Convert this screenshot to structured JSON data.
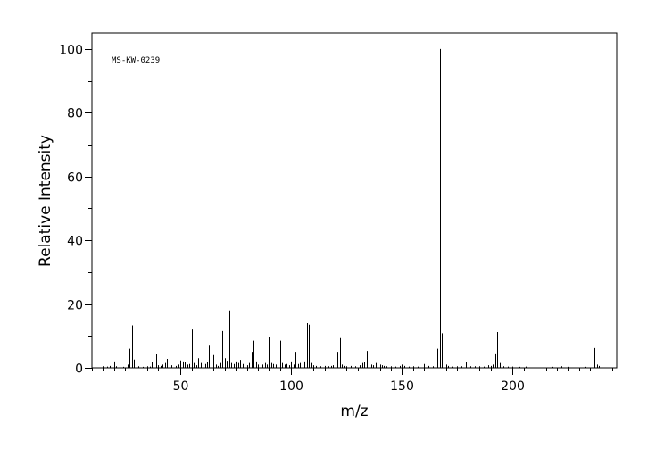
{
  "chart_data": {
    "type": "bar",
    "title": "",
    "annotation": "MS-KW-0239",
    "xlabel": "m/z",
    "ylabel": "Relative Intensity",
    "xlim": [
      10,
      247
    ],
    "ylim": [
      0,
      105
    ],
    "x_ticks": [
      50,
      100,
      150,
      200
    ],
    "y_ticks": [
      0,
      20,
      40,
      60,
      80,
      100
    ],
    "grid": false,
    "peaks": [
      [
        15,
        0.5
      ],
      [
        17,
        0.4
      ],
      [
        18,
        0.6
      ],
      [
        19,
        0.4
      ],
      [
        20,
        2.0
      ],
      [
        21,
        0.5
      ],
      [
        24,
        0.3
      ],
      [
        26,
        1.0
      ],
      [
        27,
        6.0
      ],
      [
        28,
        13.3
      ],
      [
        29,
        2.6
      ],
      [
        30,
        0.6
      ],
      [
        31,
        0.5
      ],
      [
        33,
        0.3
      ],
      [
        35,
        0.5
      ],
      [
        36,
        0.4
      ],
      [
        37,
        1.8
      ],
      [
        38,
        2.5
      ],
      [
        39,
        4.2
      ],
      [
        40,
        0.8
      ],
      [
        41,
        0.6
      ],
      [
        42,
        1.0
      ],
      [
        43,
        1.5
      ],
      [
        44,
        2.8
      ],
      [
        45,
        10.5
      ],
      [
        46,
        0.8
      ],
      [
        48,
        0.6
      ],
      [
        49,
        1.0
      ],
      [
        50,
        2.3
      ],
      [
        51,
        2.0
      ],
      [
        52,
        1.8
      ],
      [
        53,
        1.0
      ],
      [
        54,
        1.2
      ],
      [
        55,
        12.0
      ],
      [
        56,
        1.5
      ],
      [
        57,
        0.8
      ],
      [
        58,
        3.0
      ],
      [
        59,
        1.5
      ],
      [
        60,
        1.0
      ],
      [
        61,
        1.2
      ],
      [
        62,
        1.8
      ],
      [
        63,
        7.2
      ],
      [
        64,
        6.5
      ],
      [
        65,
        4.0
      ],
      [
        66,
        1.0
      ],
      [
        67,
        0.6
      ],
      [
        68,
        1.5
      ],
      [
        69,
        11.5
      ],
      [
        70,
        3.0
      ],
      [
        71,
        2.2
      ],
      [
        72,
        18.0
      ],
      [
        73,
        1.5
      ],
      [
        74,
        1.2
      ],
      [
        75,
        2.0
      ],
      [
        76,
        1.5
      ],
      [
        77,
        2.5
      ],
      [
        78,
        1.2
      ],
      [
        79,
        1.0
      ],
      [
        80,
        0.8
      ],
      [
        81,
        1.5
      ],
      [
        82,
        5.0
      ],
      [
        83,
        8.5
      ],
      [
        84,
        2.0
      ],
      [
        85,
        1.0
      ],
      [
        86,
        0.8
      ],
      [
        87,
        1.0
      ],
      [
        88,
        1.5
      ],
      [
        89,
        1.0
      ],
      [
        90,
        9.8
      ],
      [
        91,
        1.5
      ],
      [
        92,
        1.2
      ],
      [
        93,
        1.0
      ],
      [
        94,
        2.2
      ],
      [
        95,
        8.5
      ],
      [
        96,
        1.5
      ],
      [
        97,
        1.0
      ],
      [
        98,
        1.2
      ],
      [
        99,
        0.8
      ],
      [
        100,
        2.0
      ],
      [
        101,
        1.0
      ],
      [
        102,
        5.0
      ],
      [
        103,
        1.2
      ],
      [
        104,
        1.5
      ],
      [
        105,
        1.0
      ],
      [
        106,
        2.0
      ],
      [
        107,
        14.0
      ],
      [
        108,
        13.5
      ],
      [
        109,
        1.5
      ],
      [
        110,
        0.8
      ],
      [
        111,
        0.6
      ],
      [
        113,
        0.5
      ],
      [
        115,
        0.6
      ],
      [
        117,
        0.5
      ],
      [
        118,
        0.6
      ],
      [
        119,
        0.8
      ],
      [
        120,
        1.2
      ],
      [
        121,
        5.0
      ],
      [
        122,
        9.3
      ],
      [
        123,
        1.0
      ],
      [
        124,
        0.6
      ],
      [
        125,
        0.5
      ],
      [
        127,
        0.6
      ],
      [
        129,
        0.5
      ],
      [
        131,
        0.8
      ],
      [
        132,
        1.5
      ],
      [
        133,
        1.8
      ],
      [
        134,
        5.3
      ],
      [
        135,
        3.0
      ],
      [
        136,
        1.0
      ],
      [
        137,
        0.8
      ],
      [
        138,
        1.5
      ],
      [
        139,
        6.2
      ],
      [
        140,
        1.0
      ],
      [
        141,
        0.8
      ],
      [
        142,
        0.6
      ],
      [
        143,
        0.5
      ],
      [
        145,
        0.5
      ],
      [
        147,
        0.4
      ],
      [
        149,
        0.6
      ],
      [
        150,
        1.0
      ],
      [
        151,
        0.6
      ],
      [
        153,
        0.4
      ],
      [
        155,
        0.5
      ],
      [
        157,
        0.4
      ],
      [
        160,
        1.2
      ],
      [
        161,
        0.8
      ],
      [
        162,
        0.6
      ],
      [
        164,
        0.5
      ],
      [
        165,
        1.0
      ],
      [
        166,
        6.0
      ],
      [
        167,
        100
      ],
      [
        168,
        10.8
      ],
      [
        169,
        9.5
      ],
      [
        170,
        1.0
      ],
      [
        171,
        0.6
      ],
      [
        173,
        0.4
      ],
      [
        175,
        0.5
      ],
      [
        177,
        0.5
      ],
      [
        179,
        1.8
      ],
      [
        180,
        0.8
      ],
      [
        181,
        0.5
      ],
      [
        183,
        0.5
      ],
      [
        185,
        0.5
      ],
      [
        187,
        0.4
      ],
      [
        189,
        0.8
      ],
      [
        190,
        0.6
      ],
      [
        191,
        1.0
      ],
      [
        192,
        4.5
      ],
      [
        193,
        11.2
      ],
      [
        194,
        1.5
      ],
      [
        195,
        0.8
      ],
      [
        196,
        0.5
      ],
      [
        198,
        0.4
      ],
      [
        200,
        0.4
      ],
      [
        203,
        0.3
      ],
      [
        206,
        0.4
      ],
      [
        210,
        0.3
      ],
      [
        214,
        0.4
      ],
      [
        218,
        0.3
      ],
      [
        222,
        0.5
      ],
      [
        225,
        0.3
      ],
      [
        229,
        0.3
      ],
      [
        233,
        0.3
      ],
      [
        237,
        6.2
      ],
      [
        238,
        1.0
      ],
      [
        239,
        0.6
      ]
    ]
  }
}
